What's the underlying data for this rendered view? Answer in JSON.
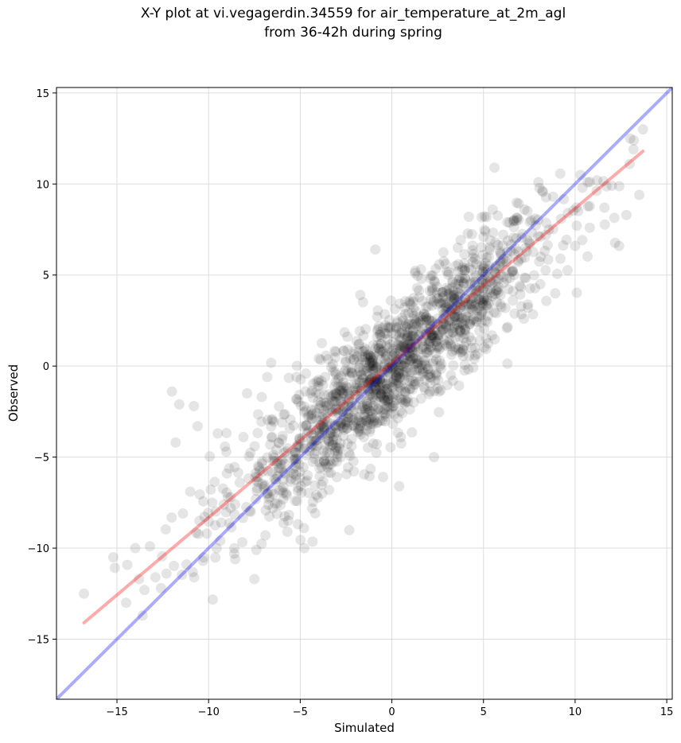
{
  "title_line1": "X-Y plot at vi.vegagerdin.34559 for air_temperature_at_2m_agl",
  "title_line2": "from 36-42h during spring",
  "chart_data": {
    "type": "scatter",
    "xlabel": "Simulated",
    "ylabel": "Observed",
    "xlim": [
      -18.3,
      15.3
    ],
    "ylim": [
      -18.3,
      15.3
    ],
    "xticks": [
      -15,
      -10,
      -5,
      0,
      5,
      10,
      15
    ],
    "yticks": [
      -15,
      -10,
      -5,
      0,
      5,
      10,
      15
    ],
    "grid": true,
    "point_color": "#000000",
    "point_alpha": 0.1,
    "regression_line": {
      "color": "#ff0000",
      "alpha": 0.33,
      "x": [
        -16.8,
        13.7
      ],
      "y": [
        -14.1,
        11.8
      ]
    },
    "identity_line": {
      "color": "#0000ff",
      "alpha": 0.33,
      "x": [
        -18.3,
        15.3
      ],
      "y": [
        -18.3,
        15.3
      ]
    },
    "sample_points": [
      [
        -16.8,
        -12.5
      ],
      [
        -15.2,
        -10.5
      ],
      [
        -14.5,
        -13.0
      ],
      [
        -14.0,
        -10.0
      ],
      [
        -13.8,
        -11.7
      ],
      [
        -13.5,
        -12.3
      ],
      [
        -13.2,
        -9.9
      ],
      [
        -12.9,
        -11.6
      ],
      [
        -12.6,
        -12.2
      ],
      [
        -12.3,
        -11.4
      ],
      [
        -12.0,
        -1.4
      ],
      [
        -11.8,
        -4.2
      ],
      [
        -11.6,
        -2.1
      ],
      [
        -11.4,
        -8.1
      ],
      [
        -11.2,
        -10.9
      ],
      [
        -11.0,
        -6.9
      ],
      [
        -10.8,
        -2.2
      ],
      [
        -10.6,
        -3.3
      ],
      [
        -10.5,
        -8.5
      ],
      [
        -10.3,
        -10.7
      ],
      [
        -10.1,
        -9.2
      ],
      [
        -9.8,
        -7.5
      ],
      [
        -9.5,
        -3.7
      ],
      [
        -9.3,
        -8.6
      ],
      [
        -9.0,
        -5.9
      ],
      [
        -8.8,
        -7.2
      ],
      [
        -8.6,
        -10.3
      ],
      [
        -8.3,
        -6.4
      ],
      [
        -8.1,
        -3.9
      ],
      [
        -7.9,
        -1.5
      ],
      [
        -7.7,
        -8.0
      ],
      [
        -7.5,
        -11.7
      ],
      [
        -7.3,
        -5.5
      ],
      [
        -7.1,
        -1.7
      ],
      [
        -6.8,
        -0.6
      ],
      [
        -6.5,
        -7.8
      ],
      [
        -6.3,
        -4.6
      ],
      [
        -6.0,
        -3.1
      ],
      [
        -5.7,
        -9.1
      ],
      [
        -5.5,
        -6.2
      ],
      [
        -5.2,
        -0.6
      ],
      [
        -5.0,
        -4.1
      ],
      [
        -4.8,
        -8.9
      ],
      [
        -4.6,
        -6.0
      ],
      [
        -4.4,
        -2.7
      ],
      [
        -4.2,
        -5.1
      ],
      [
        -4.0,
        -0.9
      ],
      [
        -3.8,
        -7.0
      ],
      [
        -3.6,
        -2.2
      ],
      [
        -3.4,
        -4.8
      ],
      [
        -3.2,
        -0.3
      ],
      [
        -3.0,
        -6.1
      ],
      [
        -2.8,
        -1.9
      ],
      [
        -2.6,
        -3.5
      ],
      [
        -2.4,
        0.9
      ],
      [
        -2.2,
        -4.4
      ],
      [
        -2.0,
        -1.2
      ],
      [
        -1.8,
        -2.8
      ],
      [
        -1.6,
        0.5
      ],
      [
        -1.4,
        -3.0
      ],
      [
        -1.2,
        -0.8
      ],
      [
        -1.0,
        -2.2
      ],
      [
        -0.8,
        1.6
      ],
      [
        -0.6,
        -1.5
      ],
      [
        -0.4,
        -0.2
      ],
      [
        -0.2,
        2.1
      ],
      [
        0.0,
        -0.9
      ],
      [
        0.2,
        0.4
      ],
      [
        0.4,
        -6.6
      ],
      [
        0.6,
        2.5
      ],
      [
        0.8,
        -0.3
      ],
      [
        1.0,
        1.0
      ],
      [
        1.2,
        3.2
      ],
      [
        1.4,
        0.1
      ],
      [
        1.6,
        1.8
      ],
      [
        1.8,
        -1.3
      ],
      [
        2.0,
        2.6
      ],
      [
        2.2,
        4.1
      ],
      [
        2.4,
        0.7
      ],
      [
        2.6,
        3.5
      ],
      [
        2.8,
        2.0
      ],
      [
        3.0,
        5.2
      ],
      [
        3.2,
        1.2
      ],
      [
        3.4,
        3.9
      ],
      [
        3.6,
        6.5
      ],
      [
        3.8,
        2.4
      ],
      [
        4.0,
        4.8
      ],
      [
        4.2,
        8.2
      ],
      [
        4.4,
        3.1
      ],
      [
        4.6,
        5.6
      ],
      [
        4.8,
        1.4
      ],
      [
        5.0,
        7.1
      ],
      [
        5.2,
        4.2
      ],
      [
        5.5,
        8.6
      ],
      [
        5.7,
        2.9
      ],
      [
        5.9,
        6.3
      ],
      [
        6.1,
        4.9
      ],
      [
        6.3,
        7.9
      ],
      [
        6.6,
        3.6
      ],
      [
        6.9,
        5.8
      ],
      [
        7.2,
        2.6
      ],
      [
        7.5,
        6.8
      ],
      [
        7.8,
        8.1
      ],
      [
        8.1,
        4.5
      ],
      [
        8.4,
        7.2
      ],
      [
        8.8,
        9.3
      ],
      [
        9.2,
        5.9
      ],
      [
        9.6,
        8.4
      ],
      [
        10.0,
        6.6
      ],
      [
        10.4,
        9.8
      ],
      [
        10.8,
        7.6
      ],
      [
        11.2,
        10.2
      ],
      [
        11.6,
        8.7
      ],
      [
        12.0,
        9.9
      ],
      [
        12.4,
        6.6
      ],
      [
        12.8,
        8.3
      ],
      [
        13.2,
        12.4
      ],
      [
        13.5,
        9.4
      ],
      [
        13.7,
        13.0
      ],
      [
        5.6,
        10.9
      ],
      [
        2.3,
        -5.0
      ],
      [
        8.0,
        10.1
      ],
      [
        -0.9,
        6.4
      ],
      [
        -13.6,
        -13.7
      ],
      [
        -6.9,
        -9.3
      ]
    ]
  }
}
